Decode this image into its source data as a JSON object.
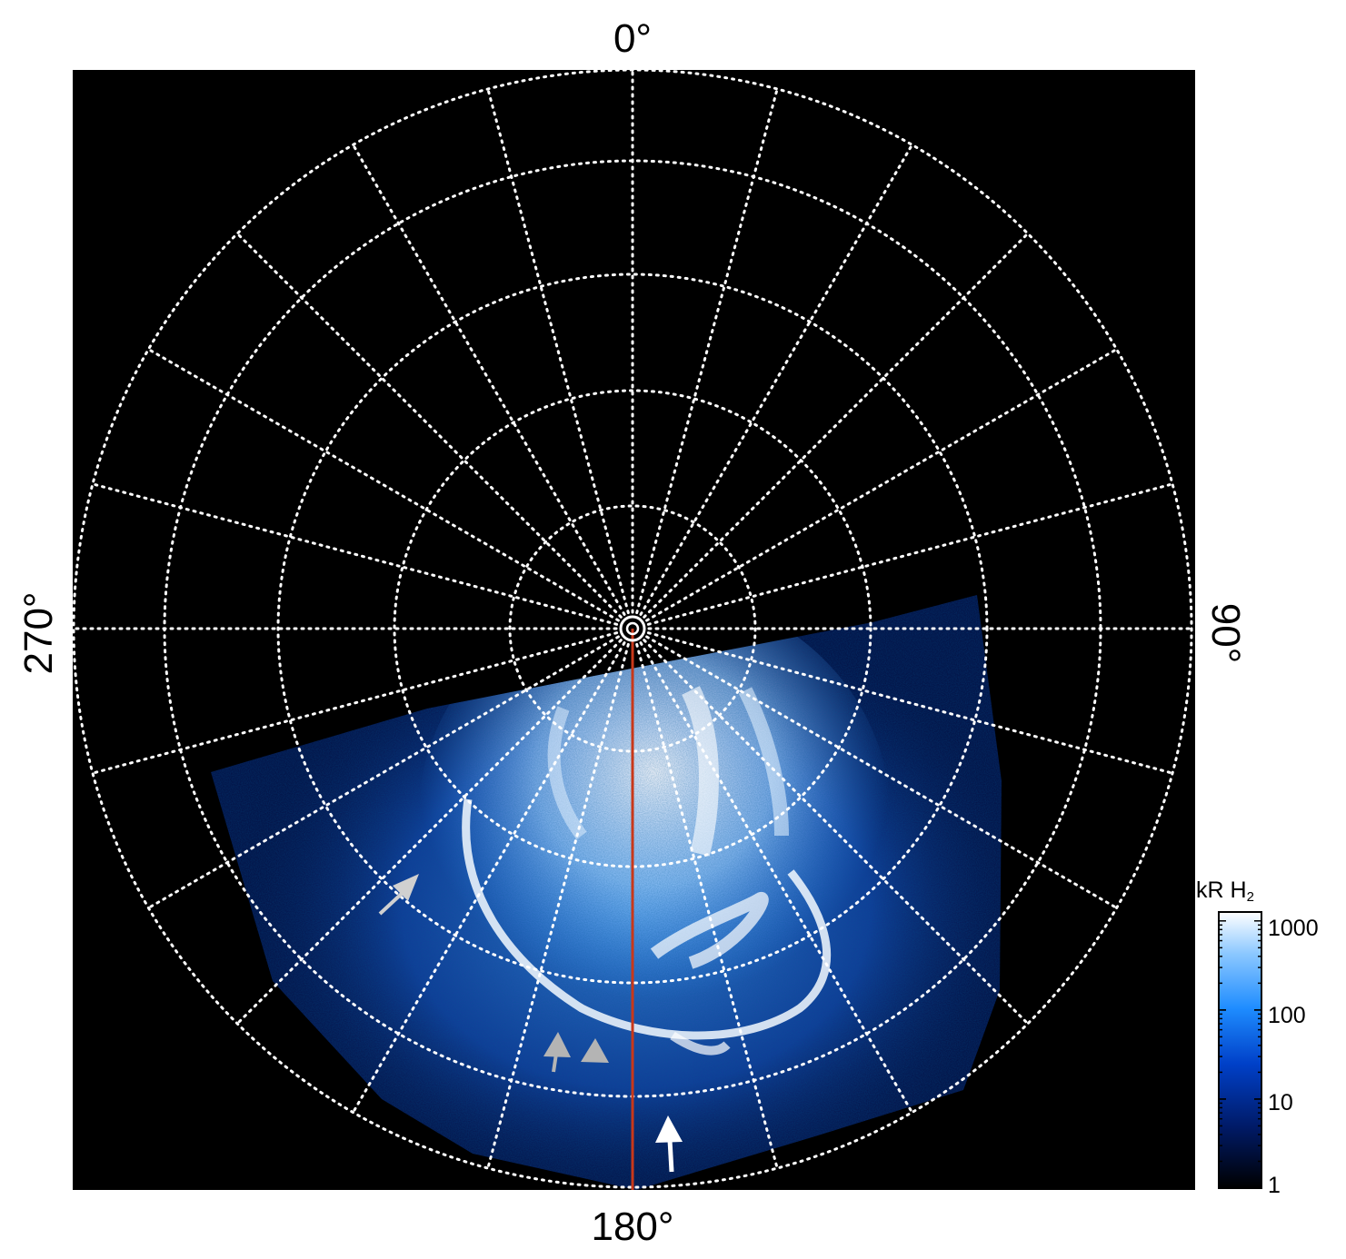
{
  "longitude_labels": {
    "top": "0°",
    "right": "90°",
    "bottom": "180°",
    "left": "270°"
  },
  "colorbar": {
    "title_main": "kR H",
    "title_sub": "2",
    "scale": "log",
    "ticks": [
      "1000",
      "100",
      "10",
      "1"
    ],
    "colors": [
      "#000000",
      "#001a66",
      "#0040c8",
      "#1e8cff",
      "#8cc8ff",
      "#ffffff"
    ]
  },
  "graticule": {
    "color": "#ffffff",
    "style": "dotted",
    "meridian_count": 24,
    "parallel_count": 5
  },
  "reference_line_color": "#c8381a",
  "annotations": {
    "arrow_colors": [
      "#d0d0d0",
      "#b4b4b4",
      "#b4b4b4",
      "#ffffff"
    ]
  }
}
